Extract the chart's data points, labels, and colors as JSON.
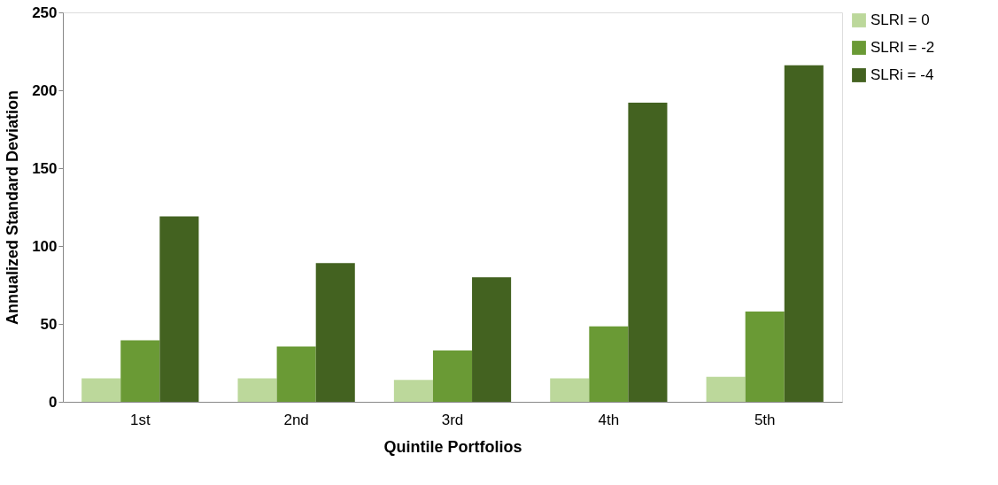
{
  "chart_data": {
    "type": "bar",
    "xlabel": "Quintile Portfolios",
    "ylabel": "Annualized Standard Deviation",
    "categories": [
      "1st",
      "2nd",
      "3rd",
      "4th",
      "5th"
    ],
    "series": [
      {
        "name": "SLRI = 0",
        "color": "#bcd89b",
        "values": [
          15,
          15,
          14,
          15,
          16
        ]
      },
      {
        "name": "SLRI = -2",
        "color": "#6a9a35",
        "values": [
          39.5,
          35.5,
          33,
          48.5,
          58
        ]
      },
      {
        "name": "SLRi = -4",
        "color": "#436220",
        "values": [
          119,
          89,
          80,
          192,
          216
        ]
      }
    ],
    "ylim": [
      0,
      250
    ],
    "yticks": [
      0,
      50,
      100,
      150,
      200,
      250
    ],
    "grid": false,
    "legend": "right"
  }
}
